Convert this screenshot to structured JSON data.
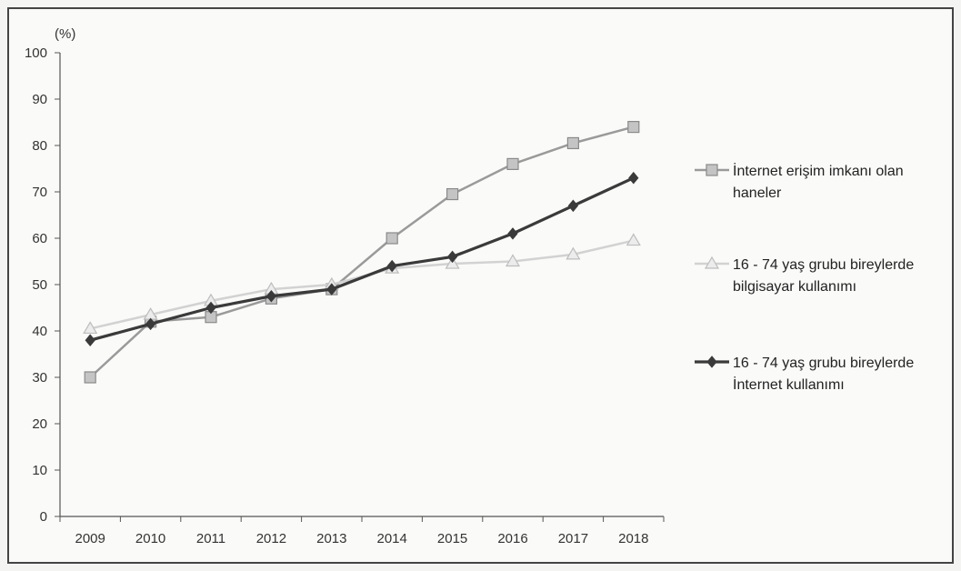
{
  "chart_data": {
    "type": "line",
    "y_unit_label": "(%)",
    "x": [
      "2009",
      "2010",
      "2011",
      "2012",
      "2013",
      "2014",
      "2015",
      "2016",
      "2017",
      "2018"
    ],
    "ylim": [
      0,
      100
    ],
    "yticks": [
      0,
      10,
      20,
      30,
      40,
      50,
      60,
      70,
      80,
      90,
      100
    ],
    "grid": false,
    "legend_position": "right",
    "series": [
      {
        "name_lines": [
          "İnternet erişim imkanı olan",
          "haneler"
        ],
        "values": [
          30,
          42,
          43,
          47,
          49,
          60,
          69.5,
          76,
          80.5,
          84
        ],
        "marker": "square",
        "color": "#9a9a9a",
        "marker_fill": "#c4c4c4"
      },
      {
        "name_lines": [
          "16 - 74 yaş grubu bireylerde",
          "bilgisayar kullanımı"
        ],
        "values": [
          40.5,
          43.5,
          46.5,
          49,
          50,
          53.5,
          54.5,
          55,
          56.5,
          59.5
        ],
        "marker": "triangle",
        "color": "#d2d2d2",
        "marker_fill": "#ececec"
      },
      {
        "name_lines": [
          "16 - 74 yaş grubu bireylerde",
          "İnternet kullanımı"
        ],
        "values": [
          38,
          41.5,
          45,
          47.5,
          49,
          54,
          56,
          61,
          67,
          73
        ],
        "marker": "diamond",
        "color": "#3a3a3a",
        "marker_fill": "#3a3a3a"
      }
    ]
  }
}
